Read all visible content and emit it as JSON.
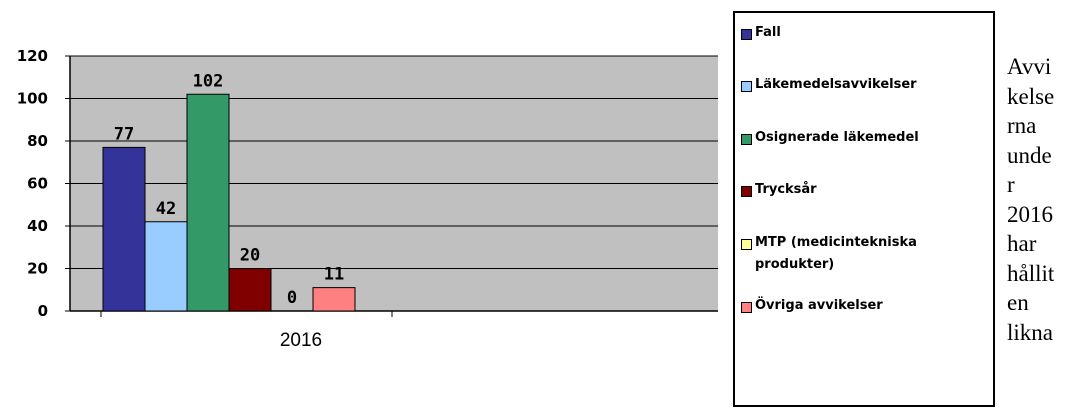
{
  "chart_data": {
    "type": "bar",
    "categories": [
      "2016"
    ],
    "series": [
      {
        "name": "Fall",
        "values": [
          77
        ],
        "color": "#333399"
      },
      {
        "name": "Läkemedelsavvikelser",
        "values": [
          42
        ],
        "color": "#99ccff"
      },
      {
        "name": "Osignerade läkemedel",
        "values": [
          102
        ],
        "color": "#339966"
      },
      {
        "name": "Trycksår",
        "values": [
          20
        ],
        "color": "#800000"
      },
      {
        "name": "MTP (medicintekniska produkter)",
        "values": [
          0
        ],
        "color": "#ffff99"
      },
      {
        "name": "Övriga avvikelser",
        "values": [
          11
        ],
        "color": "#ff8080"
      }
    ],
    "data_labels": [
      "77",
      "42",
      "102",
      "20",
      "0",
      "11"
    ],
    "yticks": [
      "0",
      "20",
      "40",
      "60",
      "80",
      "100",
      "120"
    ],
    "ylim": [
      0,
      120
    ],
    "grid": true,
    "plot_background": "#c0c0c0",
    "legend_position": "right"
  },
  "side_text": "Avvi\nkelse\nrna\nunde\nr\n2016\nhar\nhållit\nen\nlikna"
}
